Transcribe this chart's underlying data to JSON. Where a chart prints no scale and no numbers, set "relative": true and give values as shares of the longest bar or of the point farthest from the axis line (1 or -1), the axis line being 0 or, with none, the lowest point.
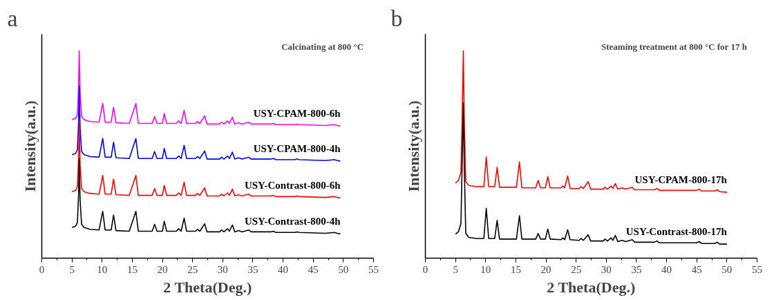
{
  "chart_data": [
    {
      "type": "line",
      "relative": true,
      "title": "Calcinating at 800 °C",
      "annotations": [
        "a"
      ],
      "xlabel": "2 Theta(Deg.)",
      "ylabel": "Intensity(a.u.)",
      "xlim": [
        0,
        55
      ],
      "xticks": [
        0,
        5,
        10,
        15,
        20,
        25,
        30,
        35,
        40,
        45,
        50,
        55
      ],
      "x": [
        5.0,
        5.6,
        5.9,
        6.1,
        6.2,
        6.35,
        6.6,
        7.0,
        8.0,
        9.5,
        10.1,
        10.5,
        11.5,
        11.9,
        12.3,
        14.5,
        15.6,
        16.0,
        18.3,
        18.7,
        19.1,
        20.0,
        20.3,
        20.7,
        22.3,
        22.7,
        23.1,
        23.6,
        24.0,
        25.5,
        25.8,
        26.2,
        27.0,
        27.4,
        29.5,
        29.8,
        30.2,
        30.8,
        31.1,
        31.6,
        32.0,
        32.6,
        33.2,
        34.3,
        34.7,
        38.0,
        38.4,
        38.8,
        42.0,
        42.3,
        42.7,
        47.0,
        48.5,
        49.0,
        49.5
      ],
      "series": [
        {
          "name": "USY-CPAM-800-6h",
          "color": "#ff00ff",
          "values": [
            0.668,
            0.674,
            0.692,
            0.828,
            1.0,
            0.798,
            0.683,
            0.668,
            0.659,
            0.656,
            0.746,
            0.656,
            0.656,
            0.728,
            0.653,
            0.65,
            0.746,
            0.65,
            0.65,
            0.683,
            0.65,
            0.65,
            0.698,
            0.65,
            0.65,
            0.662,
            0.65,
            0.713,
            0.65,
            0.65,
            0.659,
            0.65,
            0.686,
            0.647,
            0.647,
            0.656,
            0.647,
            0.662,
            0.65,
            0.68,
            0.647,
            0.653,
            0.647,
            0.656,
            0.647,
            0.647,
            0.65,
            0.644,
            0.644,
            0.647,
            0.644,
            0.64,
            0.644,
            0.64,
            0.637
          ]
        },
        {
          "name": "USY-CPAM-800-4h",
          "color": "#0000ff",
          "values": [
            0.499,
            0.505,
            0.523,
            0.659,
            0.831,
            0.629,
            0.514,
            0.499,
            0.49,
            0.487,
            0.577,
            0.487,
            0.487,
            0.559,
            0.484,
            0.481,
            0.577,
            0.481,
            0.481,
            0.514,
            0.481,
            0.481,
            0.529,
            0.481,
            0.481,
            0.493,
            0.481,
            0.544,
            0.481,
            0.481,
            0.49,
            0.481,
            0.517,
            0.478,
            0.478,
            0.487,
            0.478,
            0.493,
            0.481,
            0.511,
            0.478,
            0.484,
            0.478,
            0.487,
            0.478,
            0.478,
            0.481,
            0.475,
            0.475,
            0.478,
            0.475,
            0.471,
            0.475,
            0.471,
            0.468
          ]
        },
        {
          "name": "USY-Contrast-800-6h",
          "color": "#ff0000",
          "values": [
            0.321,
            0.327,
            0.345,
            0.481,
            0.653,
            0.451,
            0.336,
            0.321,
            0.312,
            0.309,
            0.399,
            0.309,
            0.309,
            0.381,
            0.306,
            0.303,
            0.399,
            0.303,
            0.303,
            0.336,
            0.303,
            0.303,
            0.351,
            0.303,
            0.303,
            0.315,
            0.303,
            0.366,
            0.303,
            0.303,
            0.312,
            0.303,
            0.339,
            0.3,
            0.3,
            0.309,
            0.3,
            0.315,
            0.303,
            0.333,
            0.3,
            0.306,
            0.3,
            0.309,
            0.3,
            0.3,
            0.303,
            0.297,
            0.297,
            0.3,
            0.297,
            0.293,
            0.297,
            0.293,
            0.29
          ]
        },
        {
          "name": "USY-Contrast-800-4h",
          "color": "#000000",
          "values": [
            0.148,
            0.154,
            0.172,
            0.308,
            0.48,
            0.278,
            0.163,
            0.148,
            0.139,
            0.136,
            0.226,
            0.136,
            0.136,
            0.208,
            0.133,
            0.13,
            0.226,
            0.13,
            0.13,
            0.163,
            0.13,
            0.13,
            0.178,
            0.13,
            0.13,
            0.142,
            0.13,
            0.193,
            0.13,
            0.13,
            0.139,
            0.13,
            0.166,
            0.127,
            0.127,
            0.136,
            0.127,
            0.142,
            0.13,
            0.16,
            0.127,
            0.133,
            0.127,
            0.136,
            0.127,
            0.127,
            0.13,
            0.124,
            0.124,
            0.127,
            0.124,
            0.12,
            0.124,
            0.12,
            0.117
          ]
        }
      ]
    },
    {
      "type": "line",
      "relative": true,
      "title": "Steaming treatment at 800 °C for 17 h",
      "annotations": [
        "b"
      ],
      "xlabel": "2 Theta(Deg.)",
      "ylabel": "Intensity(a.u.)",
      "xlim": [
        0,
        55
      ],
      "xticks": [
        0,
        5,
        10,
        15,
        20,
        25,
        30,
        35,
        40,
        45,
        50,
        55
      ],
      "x": [
        5.0,
        5.5,
        5.9,
        6.1,
        6.3,
        6.45,
        6.7,
        7.2,
        8.5,
        9.7,
        10.1,
        10.5,
        11.5,
        11.9,
        12.3,
        15.1,
        15.6,
        16.0,
        18.3,
        18.7,
        19.1,
        19.9,
        20.3,
        20.7,
        22.5,
        22.8,
        23.1,
        23.6,
        24.0,
        25.5,
        25.8,
        26.2,
        27.0,
        27.4,
        29.5,
        29.8,
        30.2,
        30.8,
        31.1,
        31.5,
        31.9,
        32.6,
        33.2,
        34.3,
        34.7,
        38.0,
        38.4,
        38.8,
        42.0,
        45.0,
        45.4,
        45.8,
        48.0,
        48.4,
        48.8,
        50.0
      ],
      "series": [
        {
          "name": "USY-CPAM-800-17h",
          "color": "#ff0000",
          "values": [
            0.363,
            0.375,
            0.414,
            0.667,
            1.0,
            0.667,
            0.369,
            0.351,
            0.345,
            0.345,
            0.488,
            0.345,
            0.345,
            0.438,
            0.342,
            0.342,
            0.464,
            0.339,
            0.339,
            0.375,
            0.339,
            0.339,
            0.393,
            0.339,
            0.339,
            0.348,
            0.339,
            0.396,
            0.336,
            0.336,
            0.345,
            0.336,
            0.369,
            0.333,
            0.333,
            0.342,
            0.333,
            0.348,
            0.336,
            0.36,
            0.333,
            0.339,
            0.333,
            0.342,
            0.33,
            0.33,
            0.336,
            0.327,
            0.327,
            0.327,
            0.333,
            0.324,
            0.324,
            0.33,
            0.321,
            0.318
          ]
        },
        {
          "name": "USY-Contrast-800-17h",
          "color": "#000000",
          "values": [
            0.116,
            0.128,
            0.167,
            0.45,
            0.75,
            0.45,
            0.12,
            0.1,
            0.095,
            0.095,
            0.241,
            0.095,
            0.095,
            0.182,
            0.092,
            0.092,
            0.205,
            0.092,
            0.092,
            0.119,
            0.092,
            0.092,
            0.14,
            0.092,
            0.089,
            0.098,
            0.089,
            0.137,
            0.089,
            0.086,
            0.095,
            0.086,
            0.113,
            0.083,
            0.083,
            0.092,
            0.083,
            0.098,
            0.086,
            0.11,
            0.08,
            0.086,
            0.08,
            0.089,
            0.077,
            0.077,
            0.083,
            0.074,
            0.074,
            0.074,
            0.08,
            0.071,
            0.071,
            0.077,
            0.068,
            0.068
          ]
        }
      ]
    }
  ]
}
